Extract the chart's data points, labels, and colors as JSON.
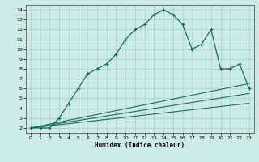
{
  "title": "",
  "xlabel": "Humidex (Indice chaleur)",
  "xlim": [
    -0.5,
    23.5
  ],
  "ylim": [
    1.5,
    14.5
  ],
  "yticks": [
    2,
    3,
    4,
    5,
    6,
    7,
    8,
    9,
    10,
    11,
    12,
    13,
    14
  ],
  "xticks": [
    0,
    1,
    2,
    3,
    4,
    5,
    6,
    7,
    8,
    9,
    10,
    11,
    12,
    13,
    14,
    15,
    16,
    17,
    18,
    19,
    20,
    21,
    22,
    23
  ],
  "bg_color": "#cceae7",
  "grid_color": "#aad4d0",
  "line_color": "#1a6b5e",
  "main_line_x": [
    0,
    1,
    2,
    3,
    4,
    5,
    6,
    7,
    8,
    9,
    10,
    11,
    12,
    13,
    14,
    15,
    16,
    17,
    18,
    19,
    20,
    21,
    22,
    23
  ],
  "main_line_y": [
    2,
    2,
    2,
    3,
    4.5,
    6,
    7.5,
    8,
    8.5,
    9.5,
    11,
    12,
    12.5,
    13.5,
    14,
    13.5,
    12.5,
    10,
    10.5,
    12,
    8,
    8,
    8.5,
    6
  ],
  "line2_x": [
    0,
    23
  ],
  "line2_y": [
    2,
    6.5
  ],
  "line3_x": [
    0,
    23
  ],
  "line3_y": [
    2,
    5.5
  ],
  "line4_x": [
    0,
    23
  ],
  "line4_y": [
    2,
    4.5
  ]
}
